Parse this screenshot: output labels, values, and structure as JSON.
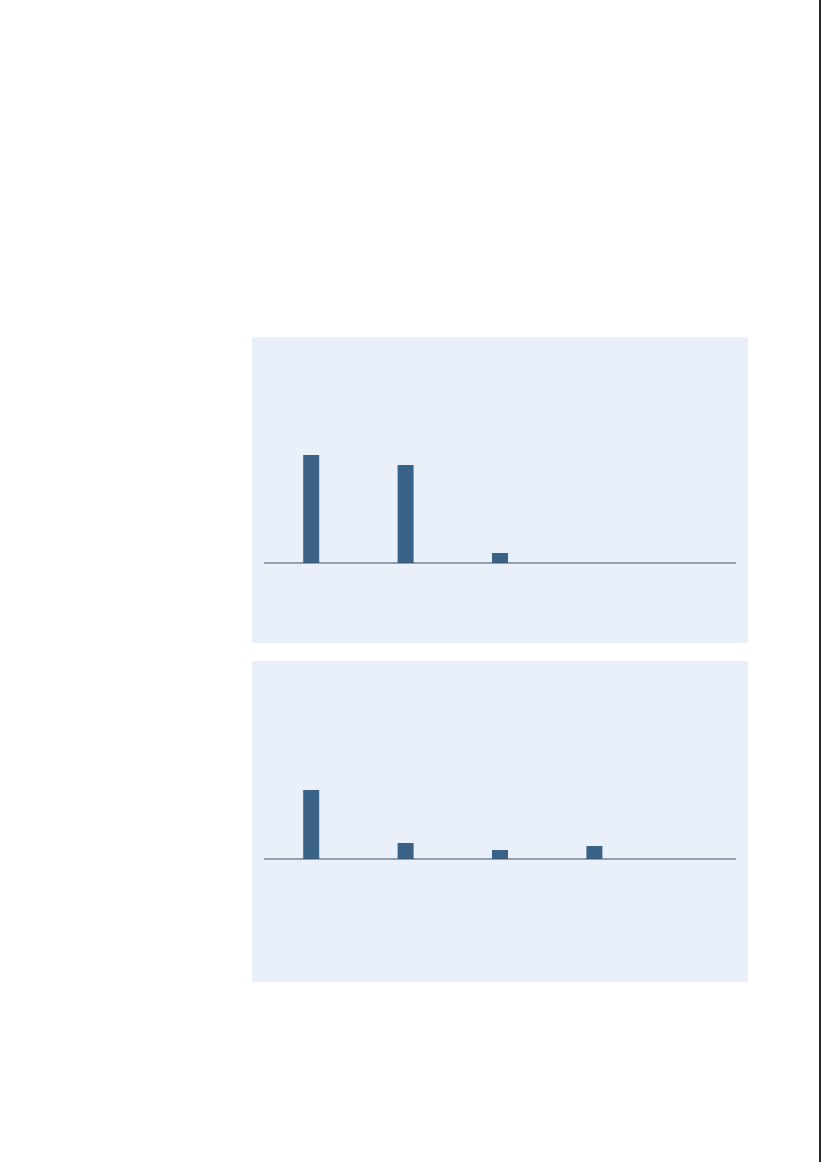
{
  "chart_data": [
    {
      "type": "bar",
      "categories": [
        null,
        null,
        null,
        null,
        null
      ],
      "values": [
        108,
        98,
        10,
        0,
        0
      ],
      "color": "#3a6186"
    },
    {
      "type": "bar",
      "categories": [
        null,
        null,
        null,
        null,
        null
      ],
      "values": [
        69,
        16,
        9,
        13,
        0
      ],
      "color": "#3a6186"
    }
  ]
}
